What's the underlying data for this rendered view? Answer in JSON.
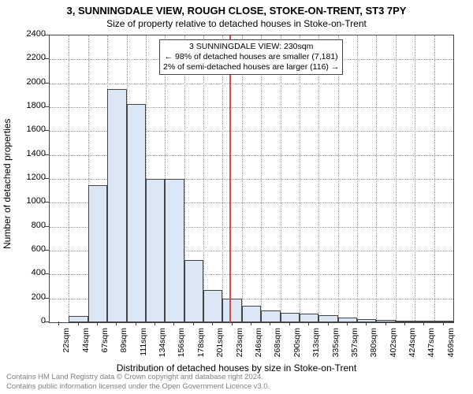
{
  "title_main": "3, SUNNINGDALE VIEW, ROUGH CLOSE, STOKE-ON-TRENT, ST3 7PY",
  "title_sub": "Size of property relative to detached houses in Stoke-on-Trent",
  "y_axis_label": "Number of detached properties",
  "x_axis_label": "Distribution of detached houses by size in Stoke-on-Trent",
  "chart": {
    "type": "histogram",
    "ylim": [
      0,
      2400
    ],
    "ytick_step": 200,
    "yticks": [
      0,
      200,
      400,
      600,
      800,
      1000,
      1200,
      1400,
      1600,
      1800,
      2000,
      2200,
      2400
    ],
    "x_labels": [
      "22sqm",
      "44sqm",
      "67sqm",
      "89sqm",
      "111sqm",
      "134sqm",
      "156sqm",
      "178sqm",
      "201sqm",
      "223sqm",
      "246sqm",
      "268sqm",
      "290sqm",
      "313sqm",
      "335sqm",
      "357sqm",
      "380sqm",
      "402sqm",
      "424sqm",
      "447sqm",
      "469sqm"
    ],
    "num_bars": 21,
    "bar_values": [
      0,
      55,
      1150,
      1950,
      1825,
      1200,
      1200,
      520,
      270,
      195,
      140,
      100,
      80,
      75,
      60,
      40,
      28,
      18,
      12,
      10,
      8
    ],
    "bar_fill": "#dbe7f5",
    "bar_border": "#444444",
    "grid_color": "#999999",
    "background": "#ffffff",
    "ref_line_index": 9.35,
    "ref_line_color": "#d84a4a"
  },
  "annotation": {
    "line1": "3 SUNNINGDALE VIEW: 230sqm",
    "line2": "← 98% of detached houses are smaller (7,181)",
    "line3": "2% of semi-detached houses are larger (116) →"
  },
  "footer": {
    "line1": "Contains HM Land Registry data © Crown copyright and database right 2024.",
    "line2": "Contains public information licensed under the Open Government Licence v3.0."
  }
}
